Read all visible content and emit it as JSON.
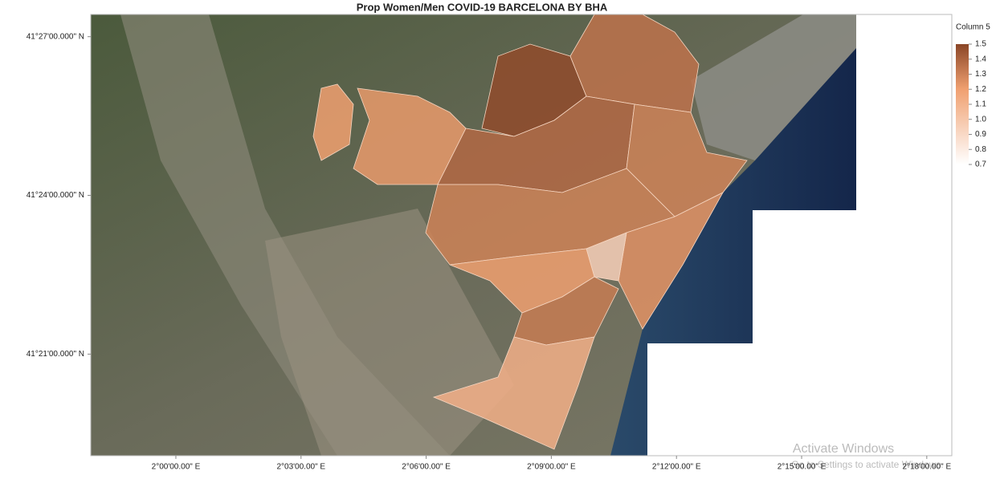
{
  "chart_data": {
    "type": "map",
    "title": "Prop Women/Men COVID-19 BARCELONA BY BHA",
    "xlim": [
      1.966,
      2.31
    ],
    "ylim": [
      41.318,
      41.457
    ],
    "xticks": [
      {
        "value": 2.0,
        "label": "2°00'00.00\" E"
      },
      {
        "value": 2.05,
        "label": "2°03'00.00\" E"
      },
      {
        "value": 2.1,
        "label": "2°06'00.00\" E"
      },
      {
        "value": 2.15,
        "label": "2°09'00.00\" E"
      },
      {
        "value": 2.2,
        "label": "2°12'00.00\" E"
      },
      {
        "value": 2.25,
        "label": "2°15'00.00\" E"
      },
      {
        "value": 2.3,
        "label": "2°18'00.00\" E"
      }
    ],
    "yticks": [
      {
        "value": 41.45,
        "label": "41°27'00.000\" N"
      },
      {
        "value": 41.4,
        "label": "41°24'00.000\" N"
      },
      {
        "value": 41.35,
        "label": "41°21'00.000\" N"
      }
    ],
    "legend_title": "Column 5",
    "color_range": [
      0.7,
      1.5
    ],
    "color_ticks": [
      1.5,
      1.4,
      1.3,
      1.2,
      1.1,
      {
        "value": 1,
        "label": "1.0"
      },
      0.9,
      0.8,
      0.7
    ],
    "colors": [
      "#ffffff",
      "#f0a070",
      "#8a4526"
    ],
    "values": [
      1.2,
      1.22,
      1.48,
      1.35,
      1.38,
      1.3,
      1.3,
      1.25,
      0.95,
      1.2,
      1.32,
      1.12
    ],
    "overlay": {
      "heading": "Activate Windows",
      "text": "Go to Settings to activate Windows."
    }
  }
}
